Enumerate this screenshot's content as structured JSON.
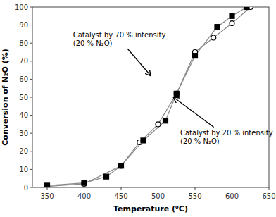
{
  "chart_data": {
    "type": "line",
    "xlabel": "Temperature (⁰C)",
    "ylabel": "Conversion of N₂O (%)",
    "series": [
      {
        "x": [
          350,
          400,
          450,
          475,
          500,
          525,
          550,
          575,
          600,
          625
        ],
        "values": [
          0.5,
          2,
          12,
          25,
          35,
          52,
          75,
          83,
          91,
          100
        ],
        "color": "#888888",
        "marker": "open-circle"
      },
      {
        "x": [
          350,
          400,
          430,
          450,
          480,
          510,
          525,
          550,
          580,
          600,
          620
        ],
        "values": [
          1,
          2.5,
          6,
          12,
          26,
          37,
          52,
          73,
          89,
          95,
          100
        ],
        "color": "#888888",
        "marker": "filled-square"
      }
    ],
    "xlim": [
      330,
      650
    ],
    "ylim": [
      0,
      100
    ],
    "xticks": [
      350,
      400,
      450,
      500,
      550,
      600,
      650
    ],
    "yticks": [
      0,
      10,
      20,
      30,
      40,
      50,
      60,
      70,
      80,
      90,
      100
    ],
    "grid": false,
    "annotations": [
      {
        "text": "Catalyst by 70 % intensity\n(20 % N₂O)",
        "x": 490,
        "y": 62,
        "text_x": 385,
        "text_y": 87
      },
      {
        "text": "Catalyst by 20 % intensity\n(20 % N₂O)",
        "x": 521,
        "y": 50,
        "text_x": 530,
        "text_y": 33
      }
    ]
  }
}
